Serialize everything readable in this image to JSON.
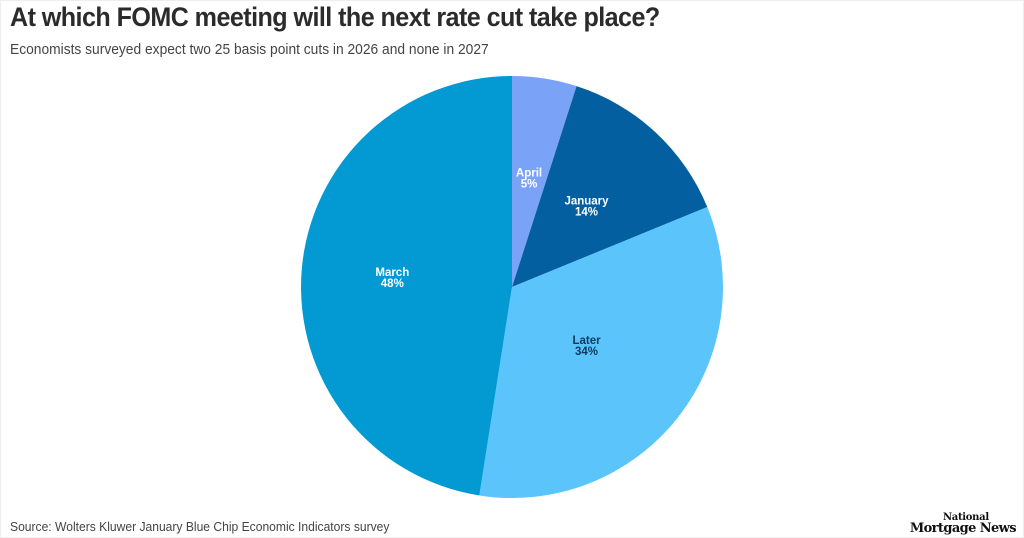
{
  "header": {
    "title": "At which FOMC meeting will the next rate cut take place?",
    "subtitle": "Economists surveyed expect two 25 basis point cuts in 2026 and none in 2027"
  },
  "footer": {
    "source": "Source: Wolters Kluwer January Blue Chip Economic Indicators survey",
    "logo_line1": "National",
    "logo_line2": "Mortgage News"
  },
  "chart_data": {
    "type": "pie",
    "title": "At which FOMC meeting will the next rate cut take place?",
    "subtitle": "Economists surveyed expect two 25 basis point cuts in 2026 and none in 2027",
    "start_angle": "12 o'clock, clockwise",
    "categories": [
      "April",
      "January",
      "Later",
      "March"
    ],
    "values": [
      5,
      14,
      34,
      48
    ],
    "unit": "%",
    "colors": [
      "#7aa3f7",
      "#035f9f",
      "#5ac4fb",
      "#039ad3"
    ],
    "label_colors": [
      "#ffffff",
      "#ffffff",
      "#0d3a5e",
      "#ffffff"
    ],
    "labels": [
      "April\n5%",
      "January\n14%",
      "Later\n34%",
      "March\n48%"
    ],
    "center": [
      512,
      287
    ],
    "radius": 211,
    "legend": "none (inline labels)",
    "source": "Source: Wolters Kluwer January Blue Chip Economic Indicators survey"
  }
}
